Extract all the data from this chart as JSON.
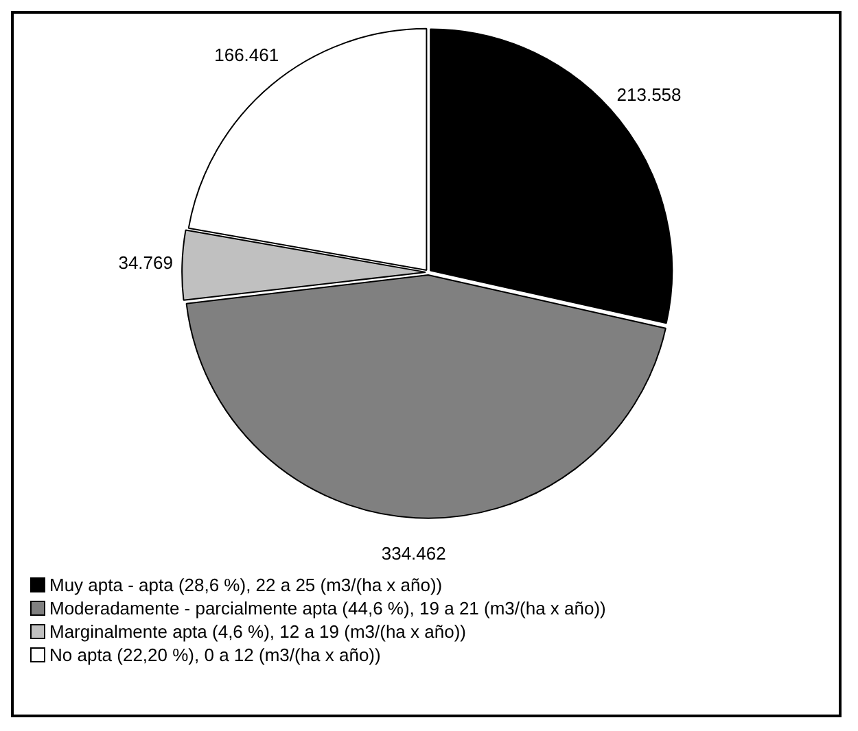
{
  "chart_data": {
    "type": "pie",
    "categories": [
      "Muy apta - apta (28,6 %), 22 a 25 (m3/(ha x año))",
      "Moderadamente - parcialmente apta (44,6 %), 19 a 21 (m3/(ha x año))",
      "Marginalmente apta (4,6 %), 12 a 19 (m3/(ha x año))",
      "No apta (22,20 %), 0 a 12 (m3/(ha x año))"
    ],
    "values": [
      213558,
      334462,
      34769,
      166461
    ],
    "value_labels": [
      "213.558",
      "334.462",
      "34.769",
      "166.461"
    ],
    "colors": [
      "#000000",
      "#808080",
      "#c0c0c0",
      "#ffffff"
    ],
    "legend": "bottom"
  }
}
